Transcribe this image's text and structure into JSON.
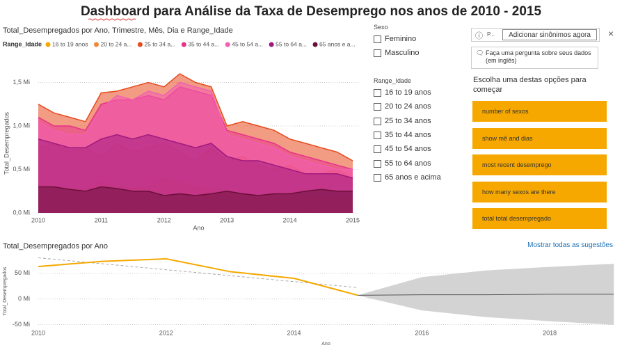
{
  "page_title": "Dashboard para Análise da Taxa de Desemprego nos anos de 2010 - 2015",
  "chart_data": [
    {
      "type": "area",
      "title": "Total_Desempregados por Ano, Trimestre, Mês, Dia e Range_Idade",
      "legend_title": "Range_Idade",
      "x_label": "Ano",
      "y_label": "Total_Desempregados",
      "x": [
        2010,
        2010.25,
        2010.5,
        2010.75,
        2011,
        2011.25,
        2011.5,
        2011.75,
        2012,
        2012.25,
        2012.5,
        2012.75,
        2013,
        2013.25,
        2013.5,
        2013.75,
        2014,
        2014.25,
        2014.5,
        2014.75,
        2015
      ],
      "xlim": [
        2010,
        2015.1
      ],
      "xticks": [
        2010,
        2011,
        2012,
        2013,
        2014,
        2015
      ],
      "ylim": [
        0,
        1.6
      ],
      "yticks": [
        {
          "value": 0,
          "label": "0,0 Mi"
        },
        {
          "value": 0.5,
          "label": "0,5 Mi"
        },
        {
          "value": 1,
          "label": "1,0 Mi"
        },
        {
          "value": 1.5,
          "label": "1,5 Mi"
        }
      ],
      "grid": true,
      "series": [
        {
          "name": "16 to 19 anos",
          "color": "#f5a800",
          "values": [
            0.32,
            0.3,
            0.28,
            0.27,
            0.35,
            0.3,
            0.28,
            0.3,
            0.4,
            0.35,
            0.3,
            0.28,
            0.25,
            0.22,
            0.22,
            0.2,
            0.2,
            0.18,
            0.17,
            0.16,
            0.17
          ]
        },
        {
          "name": "20 to 24 a...",
          "color": "#f0883a",
          "values": [
            0.75,
            0.8,
            0.7,
            0.75,
            0.65,
            0.8,
            0.7,
            0.75,
            0.8,
            0.7,
            0.6,
            0.75,
            0.6,
            0.65,
            0.55,
            0.5,
            0.55,
            0.45,
            0.45,
            0.5,
            0.4
          ]
        },
        {
          "name": "25 to 34 a...",
          "color": "#e64a1e",
          "values": [
            1.25,
            1.15,
            1.1,
            1.05,
            1.38,
            1.4,
            1.45,
            1.5,
            1.45,
            1.6,
            1.5,
            1.45,
            1.0,
            1.05,
            1.0,
            0.95,
            0.85,
            0.8,
            0.75,
            0.7,
            0.6
          ]
        },
        {
          "name": "35 to 44 a...",
          "color": "#e8318a",
          "values": [
            1.1,
            1.0,
            1.0,
            0.95,
            1.25,
            1.3,
            1.3,
            1.35,
            1.3,
            1.45,
            1.4,
            1.35,
            0.95,
            0.9,
            0.85,
            0.8,
            0.7,
            0.65,
            0.6,
            0.55,
            0.5
          ]
        },
        {
          "name": "45 to 54 a...",
          "color": "#f25fb2",
          "values": [
            1.05,
            0.95,
            0.9,
            0.9,
            1.2,
            1.35,
            1.3,
            1.4,
            1.35,
            1.5,
            1.45,
            1.4,
            0.9,
            0.85,
            0.8,
            0.75,
            0.65,
            0.6,
            0.55,
            0.5,
            0.5
          ]
        },
        {
          "name": "55 to 64 a...",
          "color": "#a0197f",
          "values": [
            0.85,
            0.8,
            0.75,
            0.75,
            0.85,
            0.9,
            0.85,
            0.9,
            0.85,
            0.8,
            0.75,
            0.8,
            0.65,
            0.6,
            0.6,
            0.55,
            0.5,
            0.45,
            0.45,
            0.45,
            0.4
          ]
        },
        {
          "name": "65 anos e a...",
          "color": "#6b0f3a",
          "values": [
            0.3,
            0.3,
            0.27,
            0.25,
            0.3,
            0.28,
            0.25,
            0.25,
            0.2,
            0.22,
            0.2,
            0.22,
            0.25,
            0.22,
            0.2,
            0.22,
            0.22,
            0.25,
            0.27,
            0.25,
            0.25
          ]
        }
      ]
    },
    {
      "type": "line",
      "title": "Total_Desempregados por Ano",
      "x_label": "Ano",
      "y_label": "Total_Desempregados",
      "x": [
        2010,
        2011,
        2012,
        2013,
        2014,
        2015
      ],
      "values": [
        63,
        73,
        78,
        53,
        40,
        7
      ],
      "color": "#f5a800",
      "trend": {
        "x": [
          2010,
          2015
        ],
        "values": [
          80,
          22
        ],
        "color": "#aaaaaa"
      },
      "forecast": {
        "x": [
          2015,
          2016,
          2017,
          2018,
          2019
        ],
        "values": [
          7,
          8,
          8,
          9,
          9
        ],
        "upper": [
          7,
          42,
          55,
          62,
          68
        ],
        "lower": [
          7,
          -22,
          -35,
          -43,
          -50
        ],
        "color": "#555555",
        "band_color": "#d3d3d3"
      },
      "xlim": [
        2010,
        2019
      ],
      "xticks": [
        2010,
        2012,
        2014,
        2016,
        2018
      ],
      "ylim": [
        -52,
        82
      ],
      "yticks": [
        {
          "value": -50,
          "label": "-50 Mi"
        },
        {
          "value": 0,
          "label": "0 Mi"
        },
        {
          "value": 50,
          "label": "50 Mi"
        }
      ],
      "grid": true
    }
  ],
  "slicers": [
    {
      "title": "Sexo",
      "options": [
        "Feminino",
        "Masculino"
      ]
    },
    {
      "title": "Range_Idade",
      "options": [
        "16 to 19 anos",
        "20 to 24 anos",
        "25 to 34 anos",
        "35 to 44 anos",
        "45 to 54 anos",
        "55 to 64 anos",
        "65 anos e acima"
      ]
    }
  ],
  "qna": {
    "input_text": "P...",
    "add_synonyms_button": "Adicionar sinônimos agora",
    "ask_prompt": "Faça uma pergunta sobre seus dados (em inglês)",
    "suggestions_heading": "Escolha uma destas opções para começar",
    "suggestions": [
      "number of sexos",
      "show mê and dias",
      "most recent desemprego",
      "how many sexos are there",
      "total total desempregado"
    ],
    "show_all_link": "Mostrar todas as sugestões"
  }
}
